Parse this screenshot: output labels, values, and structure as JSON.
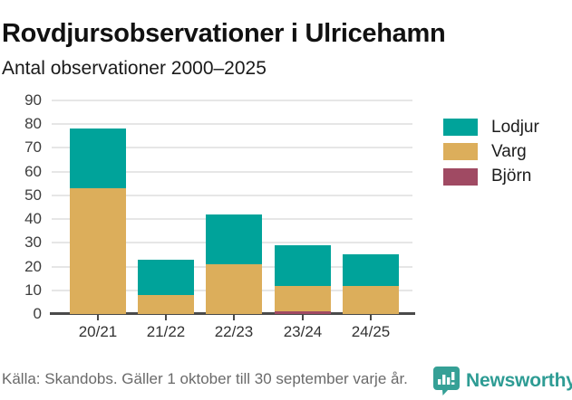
{
  "header": {
    "title": "Rovdjursobservationer i Ulricehamn",
    "subtitle": "Antal observationer 2000–2025"
  },
  "chart_data": {
    "type": "bar",
    "stacked": true,
    "title": "Rovdjursobservationer i Ulricehamn",
    "subtitle": "Antal observationer 2000–2025",
    "categories": [
      "20/21",
      "21/22",
      "22/23",
      "23/24",
      "24/25"
    ],
    "series": [
      {
        "name": "Lodjur",
        "color": "#00a39a",
        "values": [
          25,
          15,
          21,
          17,
          13
        ]
      },
      {
        "name": "Varg",
        "color": "#dcae5b",
        "values": [
          53,
          8,
          21,
          11,
          12
        ]
      },
      {
        "name": "Björn",
        "color": "#a04a63",
        "values": [
          0,
          0,
          0,
          1,
          0
        ]
      }
    ],
    "stack_order_bottom_to_top": [
      "Björn",
      "Varg",
      "Lodjur"
    ],
    "totals": [
      78,
      23,
      42,
      29,
      25
    ],
    "xlabel": "",
    "ylabel": "",
    "ylim": [
      0,
      90
    ],
    "ytick_step": 10,
    "yticks": [
      0,
      10,
      20,
      30,
      40,
      50,
      60,
      70,
      80,
      90
    ],
    "grid": true,
    "legend_position": "right"
  },
  "legend": {
    "items": [
      {
        "label": "Lodjur",
        "color": "#00a39a"
      },
      {
        "label": "Varg",
        "color": "#dcae5b"
      },
      {
        "label": "Björn",
        "color": "#a04a63"
      }
    ]
  },
  "footer": {
    "source": "Källa: Skandobs. Gäller 1 oktober till 30 september varje år.",
    "brand": "Newsworthy"
  },
  "colors": {
    "lodjur": "#00a39a",
    "varg": "#dcae5b",
    "bjorn": "#a04a63",
    "axis": "#4a4a4a",
    "gridline": "#e6e6e6",
    "brand_teal": "#2e9c94",
    "source_text": "#6a6a6a"
  }
}
